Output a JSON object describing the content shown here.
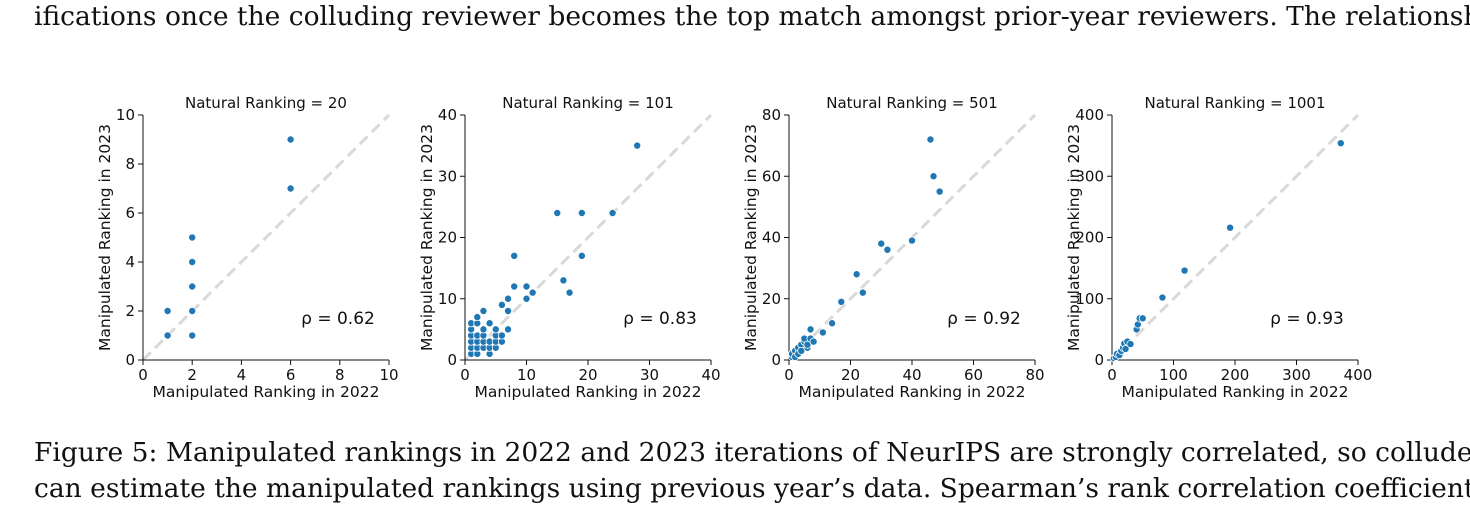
{
  "text_above": "ifications once the colluding reviewer becomes the top match amongst prior-year reviewers. The relationship",
  "caption": {
    "line1": "Figure 5: Manipulated rankings in 2022 and 2023 iterations of NeurIPS are strongly correlated, so colluders",
    "line2": "can estimate the manipulated rankings using previous year’s data. Spearman’s rank correlation coefficients"
  },
  "colors": {
    "points": "#1f77b4",
    "diagonal": "#d9d9d9"
  },
  "chart_data": [
    {
      "type": "scatter",
      "title": "Natural Ranking = 20",
      "xlabel": "Manipulated Ranking in 2022",
      "ylabel": "Manipulated Ranking in 2023",
      "xlim": [
        0,
        10
      ],
      "ylim": [
        0,
        10
      ],
      "xticks": [
        "0",
        "2",
        "4",
        "6",
        "8",
        "10"
      ],
      "yticks": [
        "0",
        "2",
        "4",
        "6",
        "8",
        "10"
      ],
      "annotation": "ρ = 0.62",
      "diagonal": true,
      "points": [
        [
          1,
          1
        ],
        [
          1,
          2
        ],
        [
          2,
          1
        ],
        [
          2,
          2
        ],
        [
          2,
          3
        ],
        [
          2,
          4
        ],
        [
          2,
          5
        ],
        [
          6,
          7
        ],
        [
          6,
          9
        ]
      ]
    },
    {
      "type": "scatter",
      "title": "Natural Ranking = 101",
      "xlabel": "Manipulated Ranking in 2022",
      "ylabel": "Manipulated Ranking in 2023",
      "xlim": [
        0,
        40
      ],
      "ylim": [
        0,
        40
      ],
      "xticks": [
        "0",
        "10",
        "20",
        "30",
        "40"
      ],
      "yticks": [
        "0",
        "10",
        "20",
        "30",
        "40"
      ],
      "annotation": "ρ = 0.83",
      "diagonal": true,
      "points": [
        [
          1,
          1
        ],
        [
          1,
          2
        ],
        [
          1,
          3
        ],
        [
          1,
          4
        ],
        [
          1,
          5
        ],
        [
          1,
          6
        ],
        [
          2,
          1
        ],
        [
          2,
          2
        ],
        [
          2,
          3
        ],
        [
          2,
          4
        ],
        [
          2,
          6
        ],
        [
          2,
          7
        ],
        [
          3,
          2
        ],
        [
          3,
          3
        ],
        [
          3,
          4
        ],
        [
          3,
          5
        ],
        [
          3,
          8
        ],
        [
          4,
          1
        ],
        [
          4,
          2
        ],
        [
          4,
          3
        ],
        [
          4,
          6
        ],
        [
          5,
          2
        ],
        [
          5,
          3
        ],
        [
          5,
          4
        ],
        [
          5,
          5
        ],
        [
          6,
          3
        ],
        [
          6,
          4
        ],
        [
          6,
          9
        ],
        [
          7,
          5
        ],
        [
          7,
          8
        ],
        [
          7,
          10
        ],
        [
          8,
          12
        ],
        [
          8,
          17
        ],
        [
          10,
          10
        ],
        [
          10,
          12
        ],
        [
          11,
          11
        ],
        [
          15,
          24
        ],
        [
          16,
          13
        ],
        [
          17,
          11
        ],
        [
          19,
          17
        ],
        [
          19,
          24
        ],
        [
          24,
          24
        ],
        [
          28,
          35
        ]
      ]
    },
    {
      "type": "scatter",
      "title": "Natural Ranking = 501",
      "xlabel": "Manipulated Ranking in 2022",
      "ylabel": "Manipulated Ranking in 2023",
      "xlim": [
        0,
        80
      ],
      "ylim": [
        0,
        80
      ],
      "xticks": [
        "0",
        "20",
        "40",
        "60",
        "80"
      ],
      "yticks": [
        "0",
        "20",
        "40",
        "60",
        "80"
      ],
      "annotation": "ρ = 0.92",
      "diagonal": true,
      "points": [
        [
          1,
          1
        ],
        [
          1,
          2
        ],
        [
          2,
          3
        ],
        [
          2,
          1
        ],
        [
          3,
          4
        ],
        [
          3,
          2
        ],
        [
          4,
          5
        ],
        [
          4,
          3
        ],
        [
          5,
          6
        ],
        [
          5,
          7
        ],
        [
          6,
          4
        ],
        [
          6,
          5
        ],
        [
          7,
          7
        ],
        [
          7,
          10
        ],
        [
          8,
          6
        ],
        [
          11,
          9
        ],
        [
          14,
          12
        ],
        [
          17,
          19
        ],
        [
          22,
          28
        ],
        [
          24,
          22
        ],
        [
          30,
          38
        ],
        [
          32,
          36
        ],
        [
          40,
          39
        ],
        [
          46,
          72
        ],
        [
          47,
          60
        ],
        [
          49,
          55
        ]
      ]
    },
    {
      "type": "scatter",
      "title": "Natural Ranking = 1001",
      "xlabel": "Manipulated Ranking in 2022",
      "ylabel": "Manipulated Ranking in 2023",
      "xlim": [
        0,
        400
      ],
      "ylim": [
        0,
        400
      ],
      "xticks": [
        "0",
        "100",
        "200",
        "300",
        "400"
      ],
      "yticks": [
        "0",
        "100",
        "200",
        "300",
        "400"
      ],
      "annotation": "ρ = 0.93",
      "diagonal": true,
      "points": [
        [
          3,
          3
        ],
        [
          6,
          5
        ],
        [
          8,
          10
        ],
        [
          12,
          8
        ],
        [
          15,
          15
        ],
        [
          18,
          20
        ],
        [
          20,
          27
        ],
        [
          22,
          18
        ],
        [
          25,
          30
        ],
        [
          30,
          26
        ],
        [
          40,
          50
        ],
        [
          42,
          58
        ],
        [
          45,
          68
        ],
        [
          50,
          68
        ],
        [
          82,
          102
        ],
        [
          118,
          146
        ],
        [
          192,
          216
        ],
        [
          372,
          354
        ]
      ]
    }
  ]
}
